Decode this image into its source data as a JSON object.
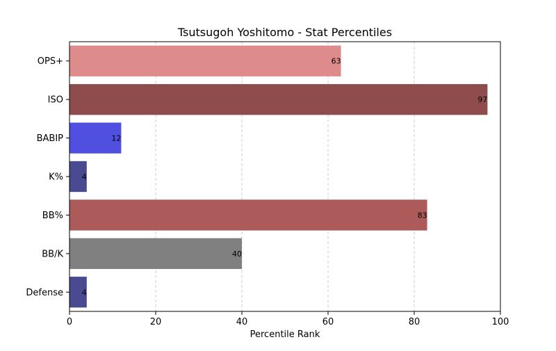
{
  "chart_data": {
    "type": "bar",
    "orientation": "horizontal",
    "title": "Tsutsugoh Yoshitomo - Stat Percentiles",
    "xlabel": "Percentile Rank",
    "ylabel": "",
    "xlim": [
      0,
      100
    ],
    "xticks": [
      0,
      20,
      40,
      60,
      80,
      100
    ],
    "grid": "x-dashed",
    "categories": [
      "OPS+",
      "ISO",
      "BABIP",
      "K%",
      "BB%",
      "BB/K",
      "Defense"
    ],
    "values": [
      63,
      97,
      12,
      4,
      83,
      40,
      4
    ],
    "colors": [
      "#de8b8b",
      "#8e4c4c",
      "#4f4fe0",
      "#4a4a91",
      "#ac5a5a",
      "#808080",
      "#4a4a91"
    ]
  }
}
